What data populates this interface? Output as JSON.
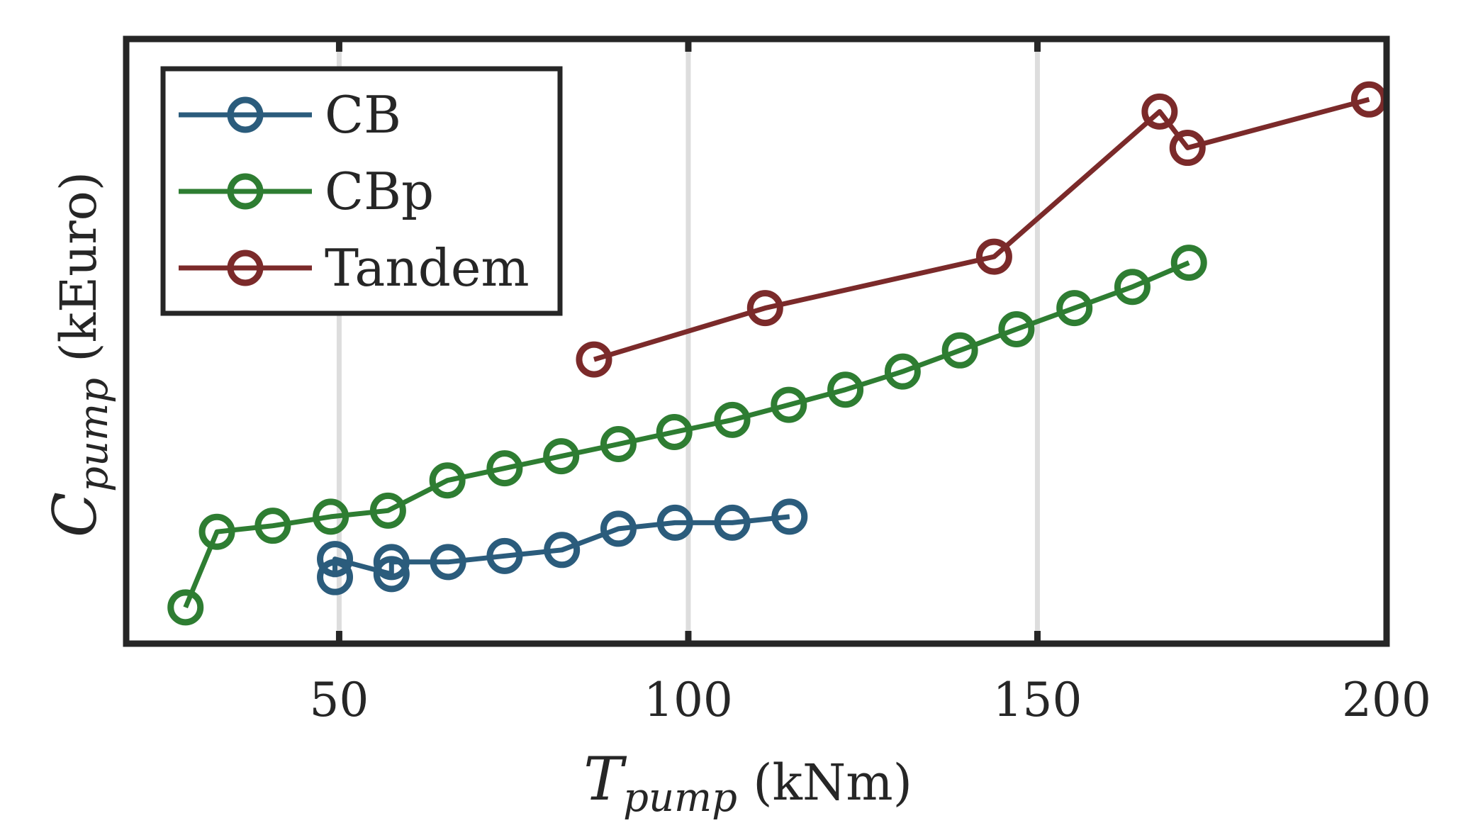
{
  "chart_data": {
    "type": "line",
    "xlabel": {
      "symbol": "T",
      "subscript": "pump",
      "unit": " (kNm)"
    },
    "ylabel": {
      "symbol": "C",
      "subscript": "pump",
      "unit": " (kEuro)"
    },
    "xlim": [
      19.5,
      200
    ],
    "ylim": [
      0,
      100
    ],
    "xticks": [
      50,
      100,
      150,
      200
    ],
    "xtick_labels": [
      "50",
      "100",
      "150",
      "200"
    ],
    "yticks": [],
    "grid": "x-only",
    "legend_location": "upper-left",
    "series": [
      {
        "name": "CB",
        "color": "#2b5c7c",
        "x": [
          49.4,
          49.4,
          57.5,
          57.5,
          65.6,
          73.7,
          81.9,
          90.0,
          98.1,
          106.3,
          114.5
        ],
        "y": [
          11.0,
          14.0,
          11.5,
          13.5,
          13.5,
          14.5,
          15.5,
          19.0,
          20.0,
          20.0,
          21.0
        ]
      },
      {
        "name": "CBp",
        "color": "#2e7d32",
        "x": [
          28.0,
          32.5,
          40.5,
          48.8,
          57.0,
          65.5,
          73.7,
          81.8,
          90.0,
          98.0,
          106.3,
          114.4,
          122.5,
          130.7,
          138.9,
          147.0,
          155.3,
          163.6,
          171.7
        ],
        "y": [
          6.0,
          18.5,
          19.5,
          21.0,
          22.0,
          27.0,
          29.0,
          31.0,
          33.0,
          35.0,
          37.0,
          39.5,
          42.0,
          45.0,
          48.5,
          52.0,
          55.5,
          59.0,
          63.0
        ]
      },
      {
        "name": "Tandem",
        "color": "#7b2a2a",
        "x": [
          86.5,
          111.0,
          143.8,
          167.5,
          171.5,
          197.5
        ],
        "y": [
          47.0,
          55.5,
          64.0,
          88.0,
          82.0,
          90.0
        ]
      }
    ]
  }
}
